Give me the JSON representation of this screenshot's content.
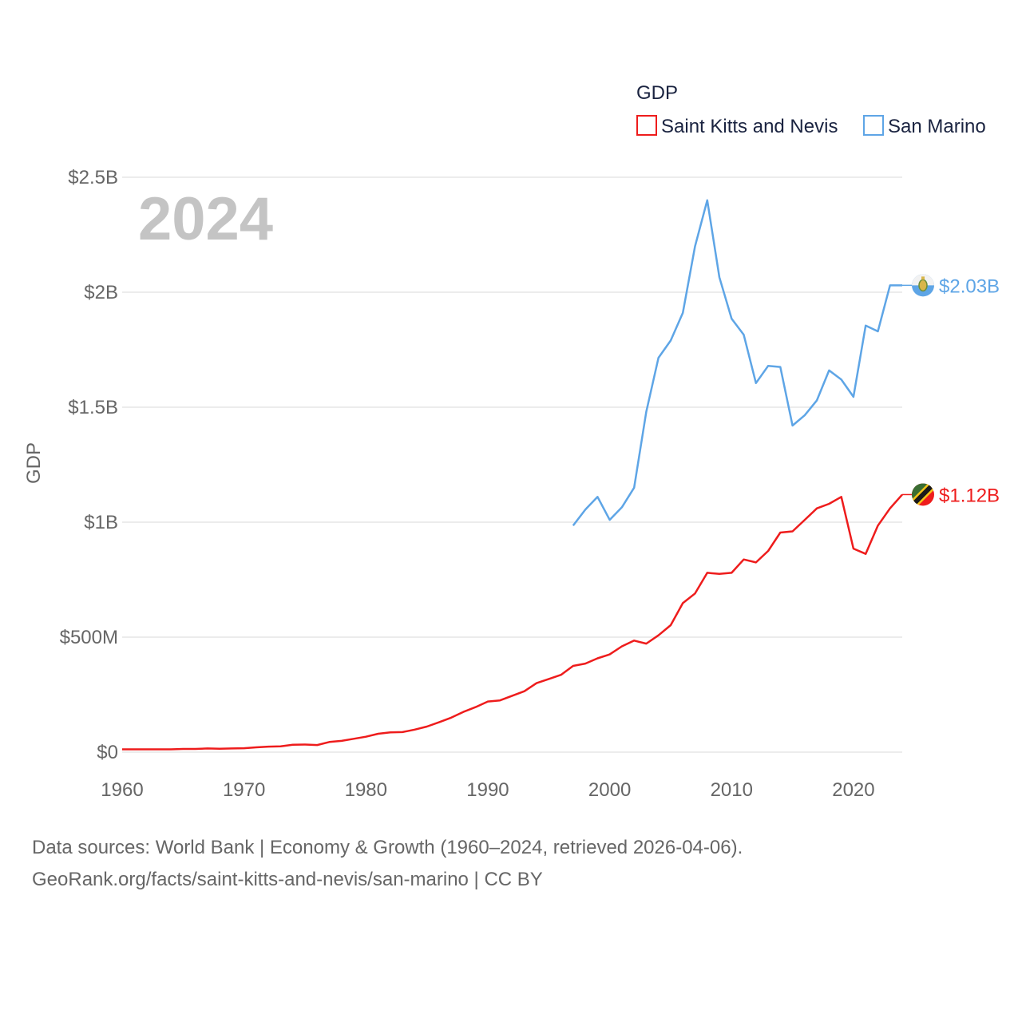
{
  "chart_data": {
    "type": "line",
    "title": "GDP",
    "ylabel": "GDP",
    "xlabel": "",
    "year_label": "2024",
    "xlim": [
      1960,
      2024
    ],
    "ylim": [
      0,
      2500000000
    ],
    "x_ticks": [
      "1960",
      "1970",
      "1980",
      "1990",
      "2000",
      "2010",
      "2020"
    ],
    "y_ticks": [
      "$0",
      "$500M",
      "$1B",
      "$1.5B",
      "$2B",
      "$2.5B"
    ],
    "legend_position": "top-right",
    "series": [
      {
        "name": "Saint Kitts and Nevis",
        "color": "#ee1c1c",
        "end_label": "$1.12B",
        "flag_icon": "saint-kitts-and-nevis-flag-icon",
        "x": [
          1960,
          1961,
          1962,
          1963,
          1964,
          1965,
          1966,
          1967,
          1968,
          1969,
          1970,
          1971,
          1972,
          1973,
          1974,
          1975,
          1976,
          1977,
          1978,
          1979,
          1980,
          1981,
          1982,
          1983,
          1984,
          1985,
          1986,
          1987,
          1988,
          1989,
          1990,
          1991,
          1992,
          1993,
          1994,
          1995,
          1996,
          1997,
          1998,
          1999,
          2000,
          2001,
          2002,
          2003,
          2004,
          2005,
          2006,
          2007,
          2008,
          2009,
          2010,
          2011,
          2012,
          2013,
          2014,
          2015,
          2016,
          2017,
          2018,
          2019,
          2020,
          2021,
          2022,
          2023,
          2024
        ],
        "values": [
          12000000,
          12000000,
          12000000,
          12000000,
          12000000,
          14000000,
          14000000,
          16000000,
          15000000,
          16000000,
          17000000,
          21000000,
          24000000,
          25000000,
          32000000,
          33000000,
          31000000,
          44000000,
          49000000,
          58000000,
          67000000,
          80000000,
          86000000,
          87000000,
          98000000,
          111000000,
          130000000,
          150000000,
          175000000,
          196000000,
          220000000,
          225000000,
          245000000,
          265000000,
          300000000,
          318000000,
          336000000,
          375000000,
          385000000,
          408000000,
          425000000,
          460000000,
          485000000,
          472000000,
          508000000,
          552000000,
          648000000,
          690000000,
          780000000,
          775000000,
          780000000,
          838000000,
          825000000,
          875000000,
          955000000,
          960000000,
          1010000000,
          1060000000,
          1080000000,
          1110000000,
          885000000,
          862000000,
          985000000,
          1060000000,
          1120000000
        ]
      },
      {
        "name": "San Marino",
        "color": "#5ea5e6",
        "end_label": "$2.03B",
        "flag_icon": "san-marino-flag-icon",
        "x": [
          1997,
          1998,
          1999,
          2000,
          2001,
          2002,
          2003,
          2004,
          2005,
          2006,
          2007,
          2008,
          2009,
          2010,
          2011,
          2012,
          2013,
          2014,
          2015,
          2016,
          2017,
          2018,
          2019,
          2020,
          2021,
          2022,
          2023,
          2024
        ],
        "values": [
          985000000,
          1055000000,
          1110000000,
          1010000000,
          1065000000,
          1150000000,
          1480000000,
          1715000000,
          1790000000,
          1910000000,
          2200000000,
          2400000000,
          2065000000,
          1885000000,
          1815000000,
          1605000000,
          1680000000,
          1675000000,
          1420000000,
          1465000000,
          1530000000,
          1660000000,
          1620000000,
          1545000000,
          1855000000,
          1830000000,
          2030000000,
          2030000000
        ]
      }
    ]
  },
  "footer": {
    "line1": "Data sources: World Bank | Economy & Growth (1960–2024, retrieved 2026-04-06).",
    "line2": "GeoRank.org/facts/saint-kitts-and-nevis/san-marino | CC BY"
  }
}
